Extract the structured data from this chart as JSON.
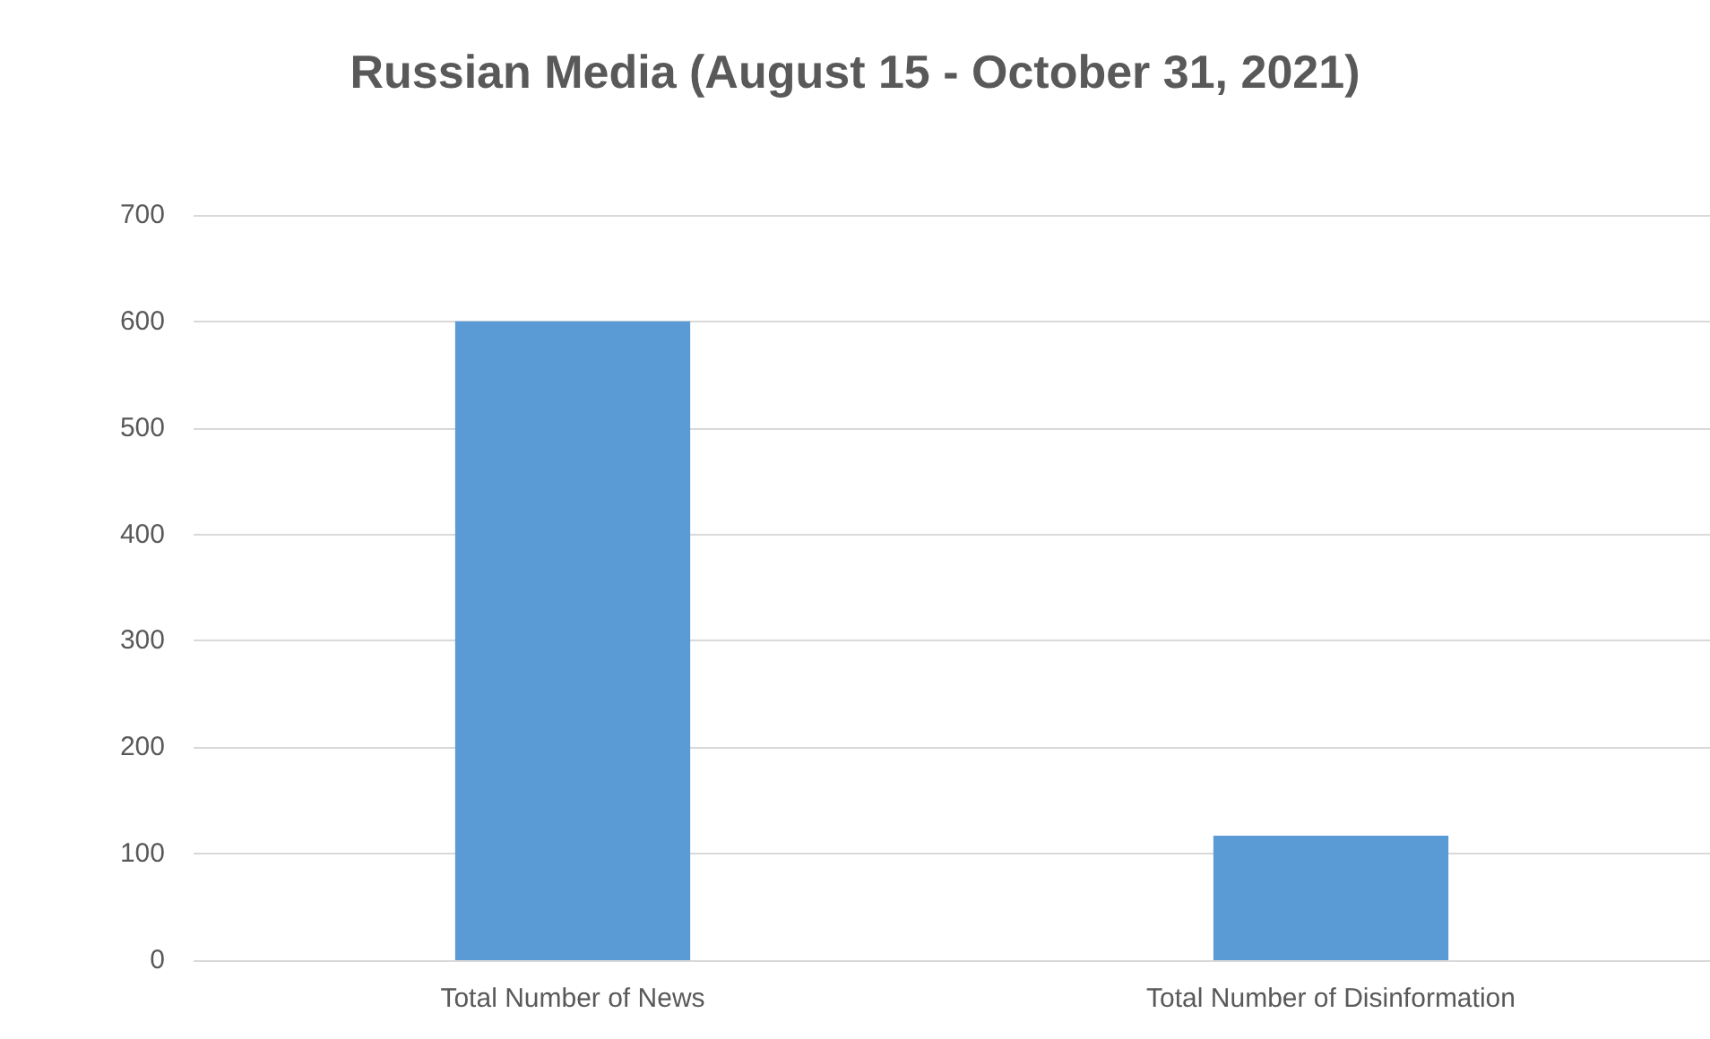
{
  "chart_data": {
    "type": "bar",
    "title": "Russian Media (August 15 - October 31, 2021)",
    "categories": [
      "Total Number of News",
      "Total Number of Disinformation"
    ],
    "values": [
      600,
      117
    ],
    "color": "#5b9bd5",
    "ylim": [
      0,
      700
    ],
    "yticks": [
      0,
      100,
      200,
      300,
      400,
      500,
      600,
      700
    ],
    "grid": "y"
  }
}
